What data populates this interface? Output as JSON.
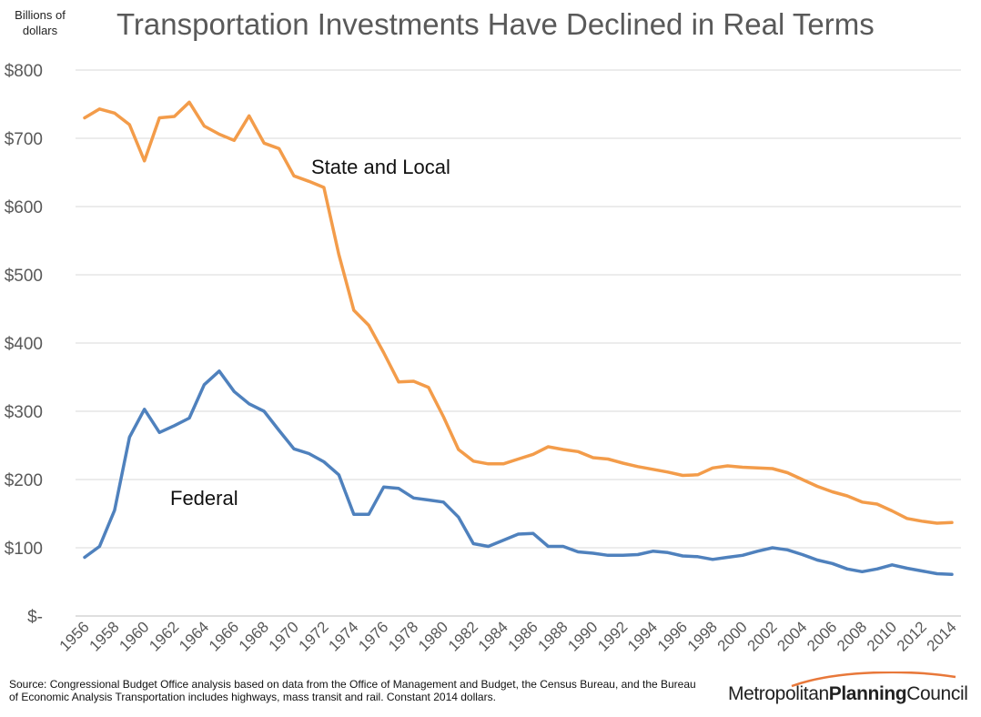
{
  "colors": {
    "state_local": "#F39C4A",
    "federal": "#4F81BD",
    "grid": "#D9D9D9",
    "axis_text": "#595959",
    "logo_swoosh": "#E8783A"
  },
  "units_label": "Billions of dollars",
  "source_text": "Source: Congressional Budget Office analysis based on data from the Office of Management and Budget, the Census Bureau, and the Bureau of Economic Analysis Transportation includes highways, mass transit and rail.  Constant 2014 dollars.",
  "logo": {
    "regular1": "Metropolitan",
    "bold": "Planning",
    "regular2": "Council"
  },
  "chart_data": {
    "type": "line",
    "title": "Transportation Investments Have Declined in Real Terms",
    "ylabel": "Billions of dollars",
    "xlabel": "",
    "ylim": [
      0,
      800
    ],
    "yticks": [
      0,
      100,
      200,
      300,
      400,
      500,
      600,
      700,
      800
    ],
    "ytick_labels": [
      "$-",
      "$100",
      "$200",
      "$300",
      "$400",
      "$500",
      "$600",
      "$700",
      "$800"
    ],
    "grid": true,
    "x": [
      1956,
      1957,
      1958,
      1959,
      1960,
      1961,
      1962,
      1963,
      1964,
      1965,
      1966,
      1967,
      1968,
      1969,
      1970,
      1971,
      1972,
      1973,
      1974,
      1975,
      1976,
      1977,
      1978,
      1979,
      1980,
      1981,
      1982,
      1983,
      1984,
      1985,
      1986,
      1987,
      1988,
      1989,
      1990,
      1991,
      1992,
      1993,
      1994,
      1995,
      1996,
      1997,
      1998,
      1999,
      2000,
      2001,
      2002,
      2003,
      2004,
      2005,
      2006,
      2007,
      2008,
      2009,
      2010,
      2011,
      2012,
      2013,
      2014
    ],
    "xtick_labels": [
      "1956",
      "1958",
      "1960",
      "1962",
      "1964",
      "1966",
      "1968",
      "1970",
      "1972",
      "1974",
      "1976",
      "1978",
      "1980",
      "1982",
      "1984",
      "1986",
      "1988",
      "1990",
      "1992",
      "1994",
      "1996",
      "1998",
      "2000",
      "2002",
      "2004",
      "2006",
      "2008",
      "2010",
      "2012",
      "2014"
    ],
    "series": [
      {
        "name": "State and Local",
        "values": [
          730,
          743,
          737,
          720,
          667,
          730,
          732,
          753,
          718,
          706,
          697,
          733,
          693,
          685,
          645,
          637,
          628,
          530,
          448,
          426,
          386,
          343,
          344,
          335,
          292,
          244,
          227,
          223,
          223,
          230,
          237,
          248,
          244,
          241,
          232,
          230,
          224,
          219,
          215,
          211,
          206,
          207,
          217,
          220,
          218,
          217,
          216,
          210,
          200,
          190,
          182,
          176,
          167,
          164,
          154,
          143,
          139,
          136,
          137
        ]
      },
      {
        "name": "Federal",
        "values": [
          86,
          102,
          155,
          262,
          303,
          269,
          279,
          290,
          339,
          359,
          329,
          311,
          300,
          272,
          245,
          238,
          226,
          207,
          149,
          149,
          189,
          187,
          173,
          170,
          167,
          145,
          106,
          102,
          111,
          120,
          121,
          102,
          102,
          94,
          92,
          89,
          89,
          90,
          95,
          93,
          88,
          87,
          83,
          86,
          89,
          95,
          100,
          97,
          90,
          82,
          77,
          69,
          65,
          69,
          75,
          70,
          66,
          62,
          61
        ]
      }
    ],
    "annotations": {
      "state_local": "State and Local",
      "federal": "Federal"
    }
  }
}
